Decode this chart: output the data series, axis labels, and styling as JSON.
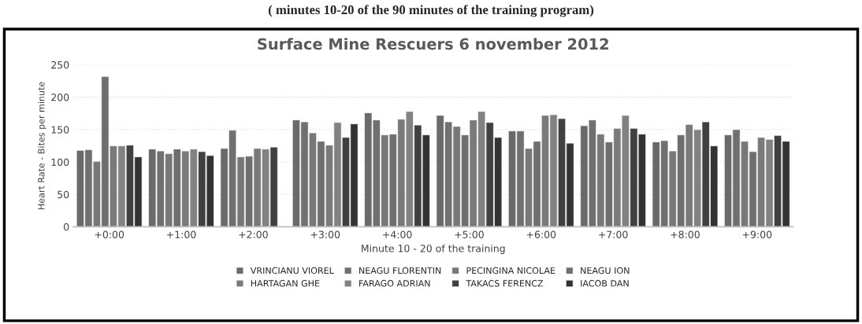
{
  "chart_data": {
    "type": "bar",
    "title": "Surface Mine Rescuers 6 november 2012",
    "xlabel": "Minute 10 - 20 of the training",
    "ylabel": "Heart Rate - Bites per minute",
    "annotations": [
      "( minutes 10-20 of the 90 minutes of the training program)"
    ],
    "categories": [
      "+0:00",
      "+1:00",
      "+2:00",
      "+3:00",
      "+4:00",
      "+5:00",
      "+6:00",
      "+7:00",
      "+8:00",
      "+9:00"
    ],
    "series": [
      {
        "name": "VRINCIANU VIOREL",
        "color": "#6a6a6a",
        "values": [
          118,
          120,
          121,
          165,
          176,
          172,
          148,
          156,
          131,
          142
        ]
      },
      {
        "name": "NEAGU FLORENTIN",
        "color": "#707070",
        "values": [
          119,
          117,
          149,
          162,
          165,
          162,
          148,
          165,
          133,
          150
        ]
      },
      {
        "name": "PECINGINA NICOLAE",
        "color": "#787878",
        "values": [
          101,
          113,
          108,
          145,
          142,
          155,
          121,
          143,
          117,
          132
        ]
      },
      {
        "name": "NEAGU ION",
        "color": "#6e6e6e",
        "values": [
          232,
          120,
          109,
          132,
          143,
          142,
          132,
          131,
          142,
          116
        ]
      },
      {
        "name": "HARTAGAN GHE",
        "color": "#7a7a7a",
        "values": [
          125,
          117,
          121,
          126,
          166,
          165,
          172,
          152,
          158,
          138
        ]
      },
      {
        "name": "FARAGO ADRIAN",
        "color": "#828282",
        "values": [
          125,
          120,
          120,
          161,
          178,
          178,
          173,
          172,
          150,
          135
        ]
      },
      {
        "name": "TAKACS FERENCZ",
        "color": "#404040",
        "values": [
          126,
          116,
          123,
          138,
          157,
          161,
          167,
          152,
          162,
          141
        ]
      },
      {
        "name": "IACOB DAN",
        "color": "#333333",
        "values": [
          108,
          110,
          null,
          159,
          142,
          138,
          129,
          143,
          125,
          132
        ]
      }
    ],
    "ylim": [
      0,
      250
    ],
    "yticks": [
      0,
      50,
      100,
      150,
      200,
      250
    ],
    "grid": "y",
    "legend": "bottom"
  }
}
